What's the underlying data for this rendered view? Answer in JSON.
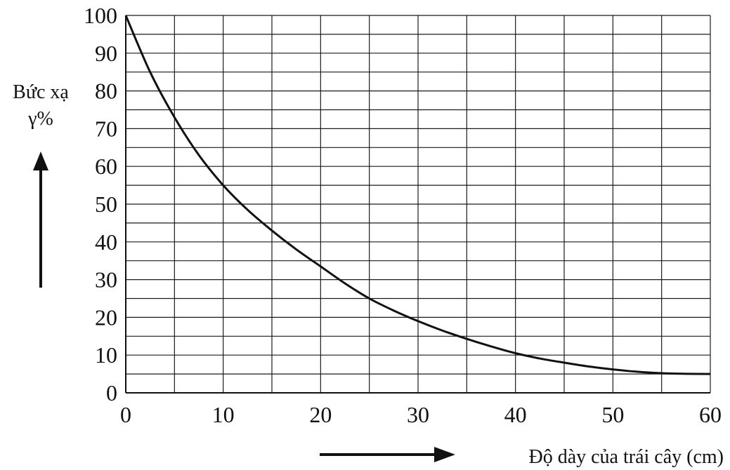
{
  "chart_data": {
    "type": "line",
    "title": "",
    "xlabel": "Độ dày của trái cây (cm)",
    "ylabel_line1": "Bức xạ",
    "ylabel_line2": "γ%",
    "xlim": [
      0,
      60
    ],
    "ylim": [
      0,
      100
    ],
    "x_ticks": [
      "0",
      "10",
      "20",
      "30",
      "40",
      "50",
      "60"
    ],
    "y_ticks": [
      "0",
      "10",
      "20",
      "30",
      "40",
      "50",
      "60",
      "70",
      "80",
      "90",
      "100"
    ],
    "x_minor_step": 5,
    "y_minor_step": 5,
    "grid": true,
    "series": [
      {
        "x": [
          0,
          2.5,
          5,
          7.5,
          10,
          12.5,
          15,
          17.5,
          20,
          22.5,
          25,
          27.5,
          30,
          32.5,
          35,
          37.5,
          40,
          42.5,
          45,
          47.5,
          50,
          52.5,
          55,
          57.5,
          60
        ],
        "y": [
          100,
          85,
          73,
          63,
          55,
          48.5,
          43,
          38,
          33.5,
          29,
          25,
          21.8,
          19,
          16.5,
          14.3,
          12.3,
          10.5,
          9.1,
          8,
          7,
          6.2,
          5.6,
          5.2,
          5.05,
          5
        ]
      }
    ]
  }
}
